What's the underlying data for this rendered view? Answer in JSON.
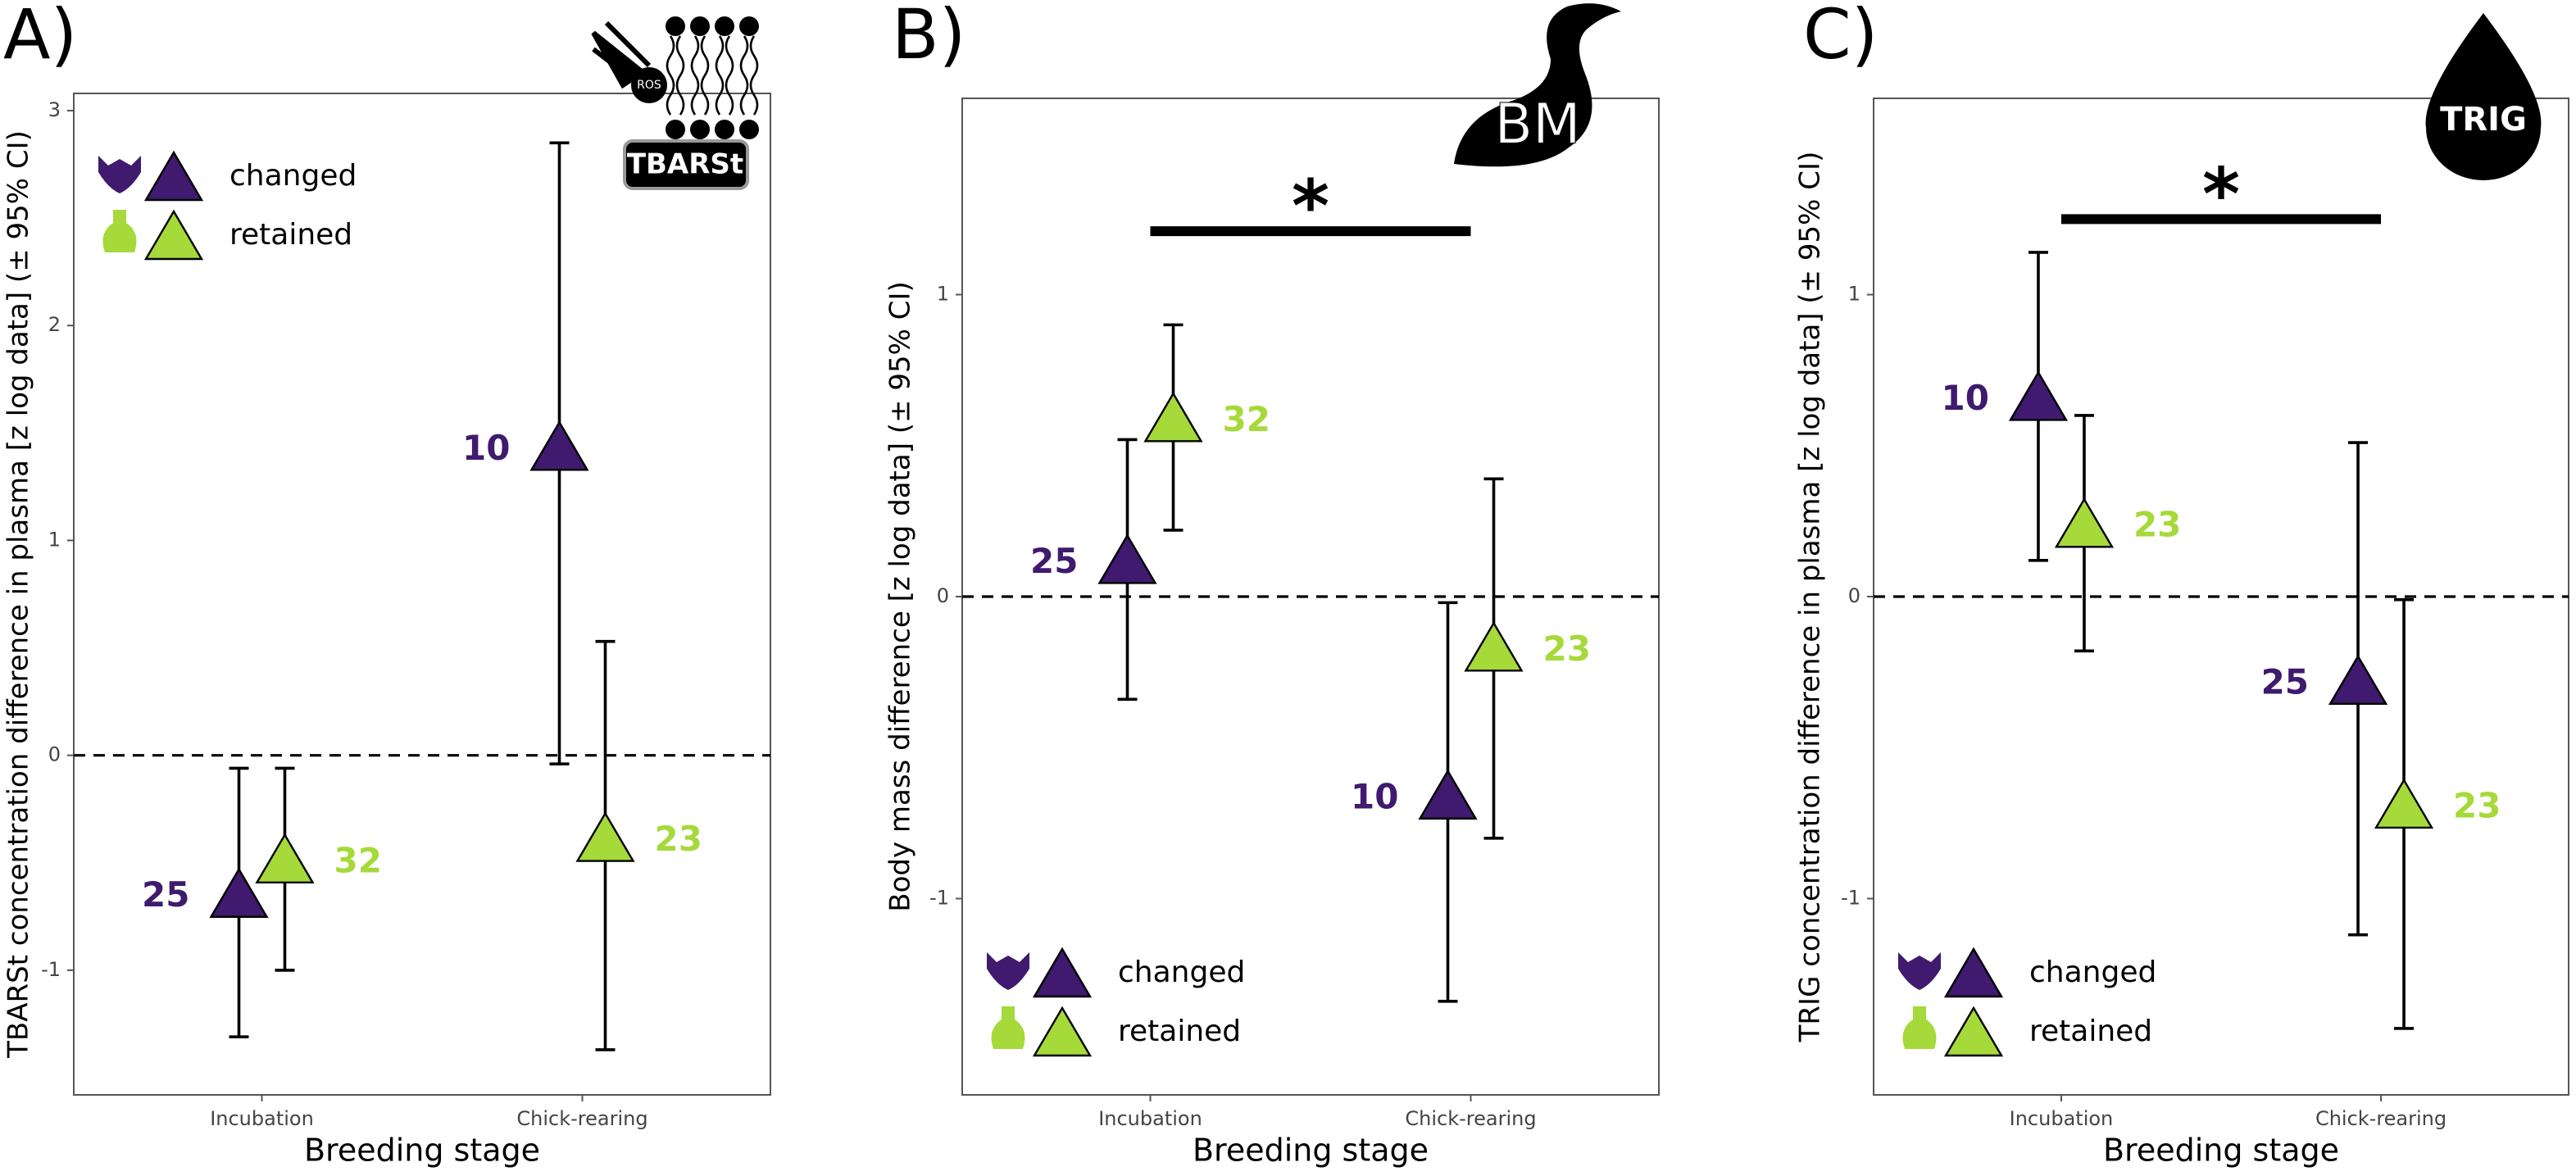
{
  "chart_data": [
    {
      "type": "errorbar",
      "panel_label": "A)",
      "icon_label": "TBARSt",
      "icon_sublabel": "ROS",
      "y_label": "TBARSt concentration difference in plasma [z log data] (± 95% CI)",
      "x_label": "Breeding stage",
      "categories": [
        "Incubation",
        "Chick-rearing"
      ],
      "ylim": [
        -1.58,
        3.08
      ],
      "yticks": [
        -1,
        0,
        1,
        2,
        3
      ],
      "reference_line": 0,
      "legend": "top-left",
      "series": [
        {
          "name": "changed",
          "color": "#3f1a6e",
          "values": [
            -0.66,
            1.42
          ],
          "ci_low": [
            -1.31,
            -0.04
          ],
          "ci_high": [
            -0.06,
            2.85
          ],
          "n": [
            25,
            10
          ]
        },
        {
          "name": "retained",
          "color": "#a6d93a",
          "values": [
            -0.5,
            -0.4
          ],
          "ci_low": [
            -1.0,
            -1.37
          ],
          "ci_high": [
            -0.06,
            0.53
          ],
          "n": [
            32,
            23
          ]
        }
      ]
    },
    {
      "type": "errorbar",
      "panel_label": "B)",
      "icon_label": "BM",
      "y_label": "Body mass difference [z log data] (± 95% CI)",
      "x_label": "Breeding stage",
      "categories": [
        "Incubation",
        "Chick-rearing"
      ],
      "ylim": [
        -1.65,
        1.65
      ],
      "yticks": [
        -1,
        0,
        1
      ],
      "reference_line": 0,
      "legend": "bottom-left",
      "significance": {
        "label": "*",
        "y": 1.21
      },
      "series": [
        {
          "name": "changed",
          "color": "#3f1a6e",
          "values": [
            0.11,
            -0.67
          ],
          "ci_low": [
            -0.34,
            -1.34
          ],
          "ci_high": [
            0.52,
            -0.02
          ],
          "n": [
            25,
            10
          ]
        },
        {
          "name": "retained",
          "color": "#a6d93a",
          "values": [
            0.58,
            -0.18
          ],
          "ci_low": [
            0.22,
            -0.8
          ],
          "ci_high": [
            0.9,
            0.39
          ],
          "n": [
            32,
            23
          ]
        }
      ]
    },
    {
      "type": "errorbar",
      "panel_label": "C)",
      "icon_label": "TRIG",
      "y_label": "TRIG concentration difference in plasma [z log data] (± 95% CI)",
      "x_label": "Breeding stage",
      "categories": [
        "Incubation",
        "Chick-rearing"
      ],
      "ylim": [
        -1.65,
        1.65
      ],
      "yticks": [
        -1,
        0,
        1
      ],
      "reference_line": 0,
      "legend": "bottom-left",
      "significance": {
        "label": "*",
        "y": 1.25
      },
      "series": [
        {
          "name": "changed",
          "color": "#3f1a6e",
          "values": [
            0.65,
            -0.29
          ],
          "ci_low": [
            0.12,
            -1.12
          ],
          "ci_high": [
            1.14,
            0.51
          ],
          "n": [
            10,
            25
          ]
        },
        {
          "name": "retained",
          "color": "#a6d93a",
          "values": [
            0.23,
            -0.7
          ],
          "ci_low": [
            -0.18,
            -1.43
          ],
          "ci_high": [
            0.6,
            -0.01
          ],
          "n": [
            23,
            23
          ]
        }
      ]
    }
  ]
}
